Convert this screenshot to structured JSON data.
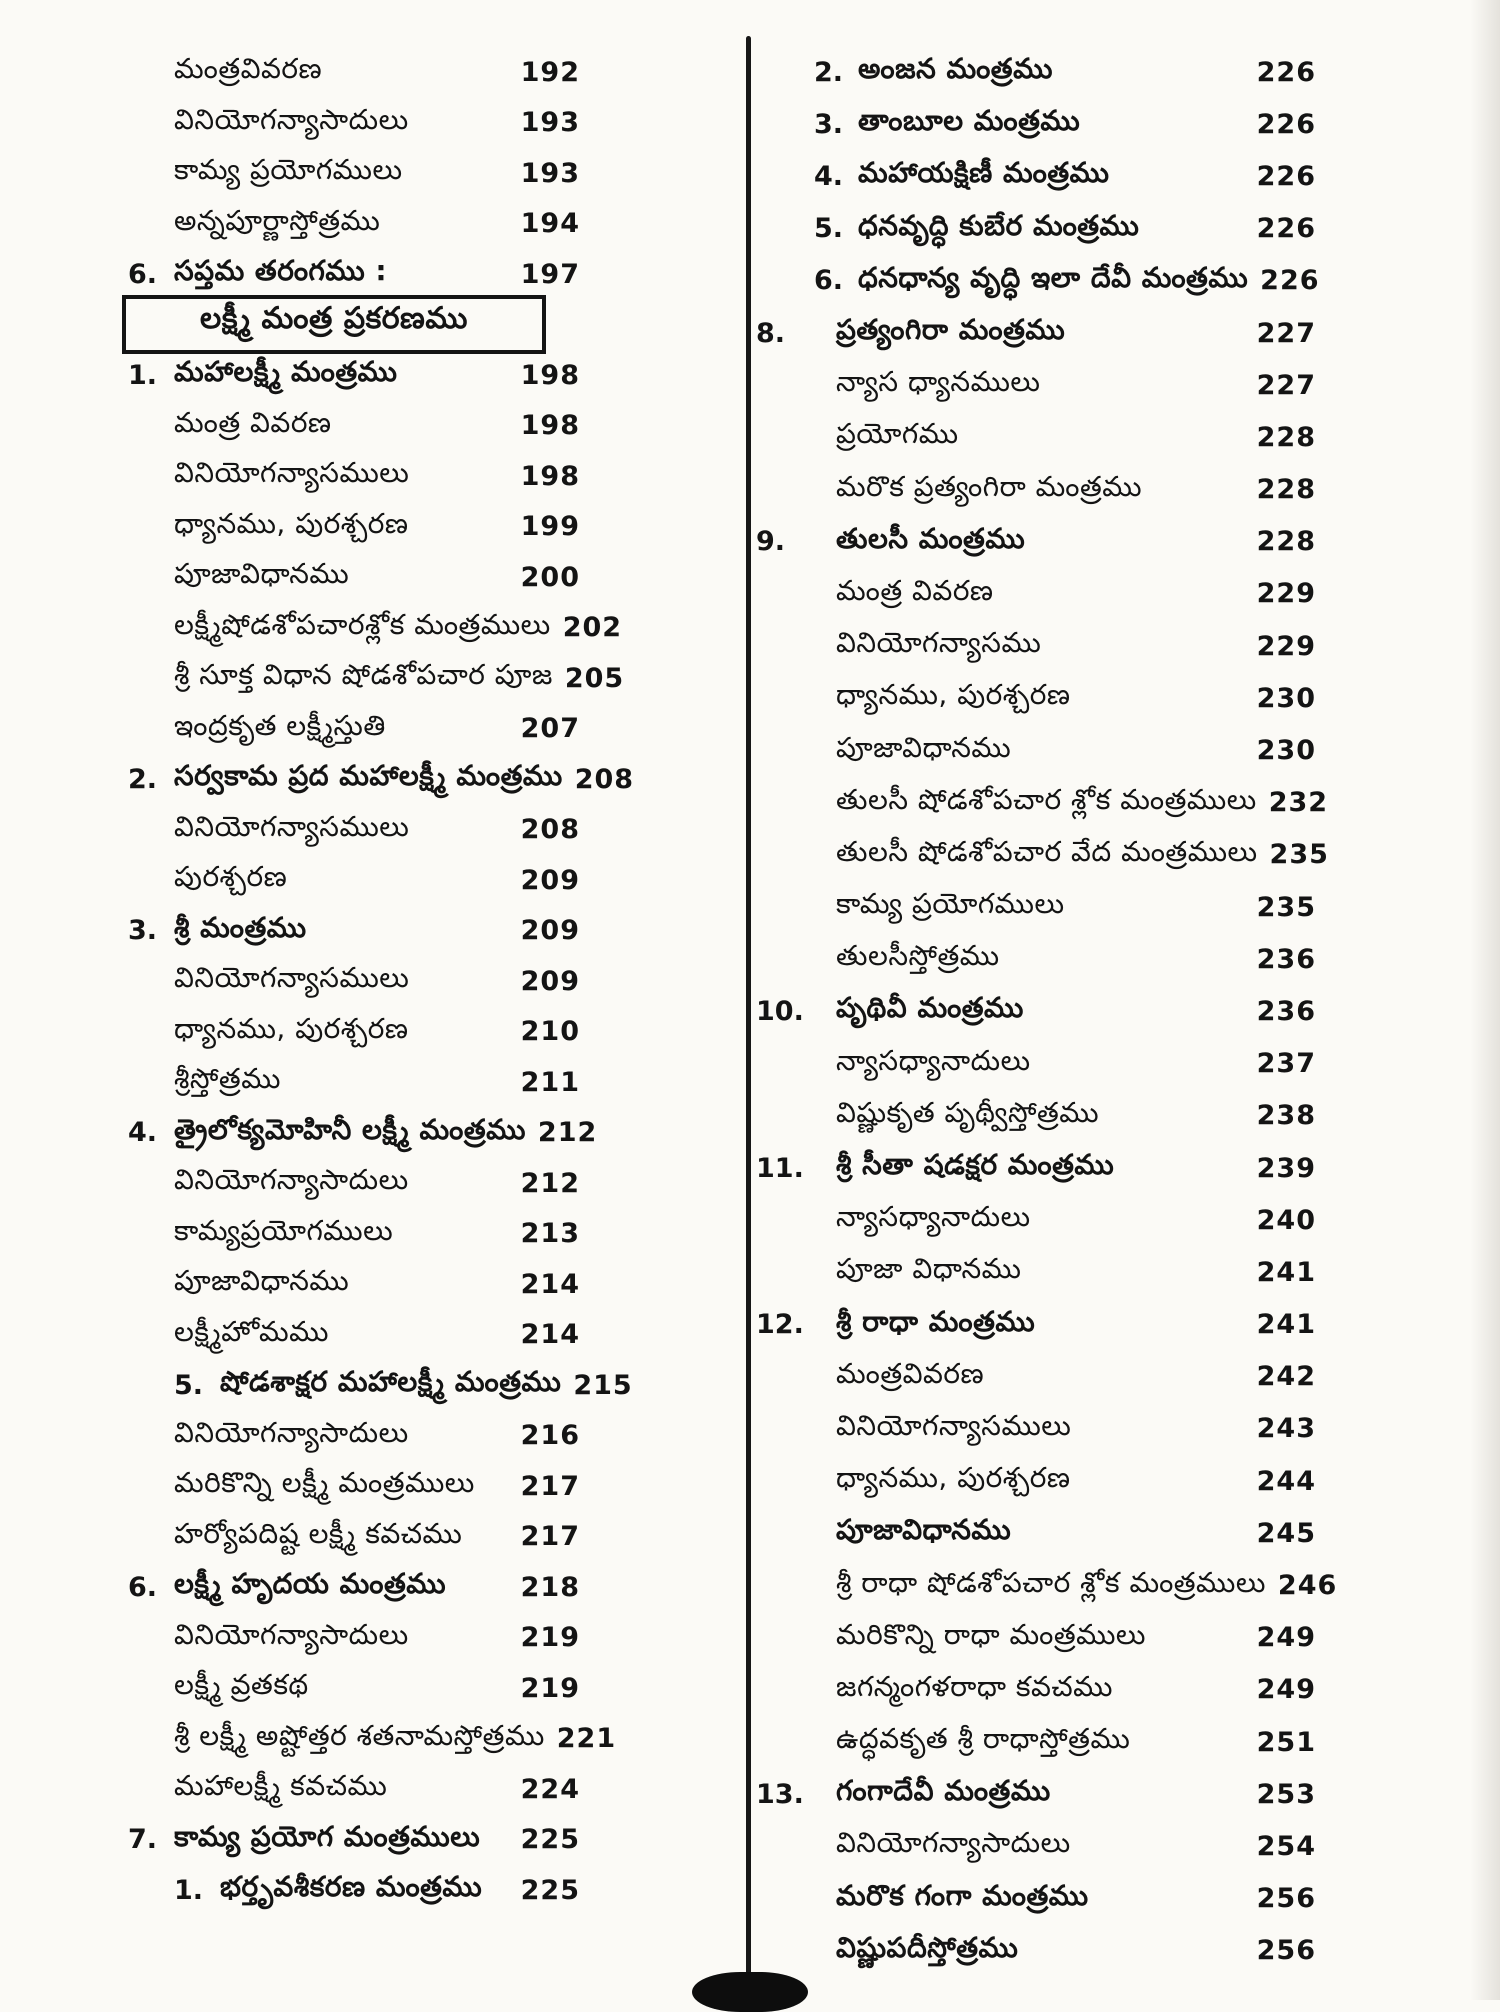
{
  "page": {
    "ink_color": "#141414",
    "paper_color": "#fbfaf6",
    "boxed_heading": "లక్ష్మీ మంత్ర ప్రకరణము"
  },
  "left_column": {
    "entries": [
      {
        "num": "",
        "label": "మంత్రవివరణ",
        "page": "192",
        "bold": false
      },
      {
        "num": "",
        "label": "వినియోగన్యాసాదులు",
        "page": "193",
        "bold": false
      },
      {
        "num": "",
        "label": "కామ్య ప్రయోగములు",
        "page": "193",
        "bold": false
      },
      {
        "num": "",
        "label": "అన్నపూర్ణాస్తోత్రము",
        "page": "194",
        "bold": false
      },
      {
        "num": "6.",
        "label": "సప్తమ తరంగము :",
        "page": "197",
        "bold": true
      },
      {
        "num": "",
        "label": "లక్ష్మీ మంత్ర ప్రకరణము",
        "page": "",
        "bold": true,
        "boxed": true
      },
      {
        "num": "1.",
        "label": "మహాలక్ష్మీ మంత్రము",
        "page": "198",
        "bold": true
      },
      {
        "num": "",
        "label": "మంత్ర వివరణ",
        "page": "198",
        "bold": false
      },
      {
        "num": "",
        "label": "వినియోగన్యాసములు",
        "page": "198",
        "bold": false
      },
      {
        "num": "",
        "label": "ధ్యానము, పురశ్చరణ",
        "page": "199",
        "bold": false
      },
      {
        "num": "",
        "label": "పూజావిధానము",
        "page": "200",
        "bold": false
      },
      {
        "num": "",
        "label": "లక్ష్మీషోడశోపచారశ్లోక మంత్రములు",
        "page": "202",
        "bold": false
      },
      {
        "num": "",
        "label": "శ్రీ సూక్త విధాన షోడశోపచార పూజ",
        "page": "205",
        "bold": false
      },
      {
        "num": "",
        "label": "ఇంద్రకృత లక్ష్మీస్తుతి",
        "page": "207",
        "bold": false
      },
      {
        "num": "2.",
        "label": "సర్వకామ ప్రద మహాలక్ష్మీ మంత్రము",
        "page": "208",
        "bold": true
      },
      {
        "num": "",
        "label": "వినియోగన్యాసములు",
        "page": "208",
        "bold": false
      },
      {
        "num": "",
        "label": "పురశ్చరణ",
        "page": "209",
        "bold": false
      },
      {
        "num": "3.",
        "label": "శ్రీ మంత్రము",
        "page": "209",
        "bold": true
      },
      {
        "num": "",
        "label": "వినియోగన్యాసములు",
        "page": "209",
        "bold": false
      },
      {
        "num": "",
        "label": "ధ్యానము, పురశ్చరణ",
        "page": "210",
        "bold": false
      },
      {
        "num": "",
        "label": "శ్రీస్తోత్రము",
        "page": "211",
        "bold": false
      },
      {
        "num": "4.",
        "label": "త్రైలోక్యమోహినీ లక్ష్మీ మంత్రము",
        "page": "212",
        "bold": true
      },
      {
        "num": "",
        "label": "వినియోగన్యాసాదులు",
        "page": "212",
        "bold": false
      },
      {
        "num": "",
        "label": "కామ్యప్రయోగములు",
        "page": "213",
        "bold": false
      },
      {
        "num": "",
        "label": "పూజావిధానము",
        "page": "214",
        "bold": false
      },
      {
        "num": "",
        "label": "లక్ష్మీహోమము",
        "page": "214",
        "bold": false
      },
      {
        "num": "5.",
        "label": "షోడశాక్షర మహాలక్ష్మీ మంత్రము",
        "page": "215",
        "bold": true,
        "sub": true
      },
      {
        "num": "",
        "label": "వినియోగన్యాసాదులు",
        "page": "216",
        "bold": false
      },
      {
        "num": "",
        "label": "మరికొన్ని లక్ష్మీ మంత్రములు",
        "page": "217",
        "bold": false
      },
      {
        "num": "",
        "label": "హర్యోపదిష్ట లక్ష్మీ కవచము",
        "page": "217",
        "bold": false
      },
      {
        "num": "6.",
        "label": "లక్ష్మీ హృదయ మంత్రము",
        "page": "218",
        "bold": true
      },
      {
        "num": "",
        "label": "వినియోగన్యాసాదులు",
        "page": "219",
        "bold": false
      },
      {
        "num": "",
        "label": "లక్ష్మీ వ్రతకథ",
        "page": "219",
        "bold": false
      },
      {
        "num": "",
        "label": "శ్రీ లక్ష్మీ అష్టోత్తర శతనామస్తోత్రము",
        "page": "221",
        "bold": false
      },
      {
        "num": "",
        "label": "మహాలక్ష్మీ కవచము",
        "page": "224",
        "bold": false
      },
      {
        "num": "7.",
        "label": "కామ్య ప్రయోగ మంత్రములు",
        "page": "225",
        "bold": true
      },
      {
        "num": "1.",
        "label": "భర్తృవశీకరణ మంత్రము",
        "page": "225",
        "bold": true,
        "sub": true
      }
    ]
  },
  "right_column": {
    "entries": [
      {
        "num": "2.",
        "label": "అంజన మంత్రము",
        "page": "226",
        "bold": true,
        "sub": true
      },
      {
        "num": "3.",
        "label": "తాంబూల మంత్రము",
        "page": "226",
        "bold": true,
        "sub": true
      },
      {
        "num": "4.",
        "label": "మహాయక్షిణీ మంత్రము",
        "page": "226",
        "bold": true,
        "sub": true
      },
      {
        "num": "5.",
        "label": "ధనవృద్ధి కుబేర మంత్రము",
        "page": "226",
        "bold": true,
        "sub": true
      },
      {
        "num": "6.",
        "label": "ధనధాన్య వృద్ధి ఇలా దేవీ మంత్రము",
        "page": "226",
        "bold": true,
        "sub": true
      },
      {
        "num": "8.",
        "label": "ప్రత్యంగిరా మంత్రము",
        "page": "227",
        "bold": true
      },
      {
        "num": "",
        "label": "న్యాస ధ్యానములు",
        "page": "227",
        "bold": false
      },
      {
        "num": "",
        "label": "ప్రయోగము",
        "page": "228",
        "bold": false
      },
      {
        "num": "",
        "label": "మరొక ప్రత్యంగిరా మంత్రము",
        "page": "228",
        "bold": false
      },
      {
        "num": "9.",
        "label": "తులసీ మంత్రము",
        "page": "228",
        "bold": true
      },
      {
        "num": "",
        "label": "మంత్ర వివరణ",
        "page": "229",
        "bold": false
      },
      {
        "num": "",
        "label": "వినియోగన్యాసము",
        "page": "229",
        "bold": false
      },
      {
        "num": "",
        "label": "ధ్యానము, పురశ్చరణ",
        "page": "230",
        "bold": false
      },
      {
        "num": "",
        "label": "పూజావిధానము",
        "page": "230",
        "bold": false
      },
      {
        "num": "",
        "label": "తులసీ షోడశోపచార శ్లోక మంత్రములు",
        "page": "232",
        "bold": false
      },
      {
        "num": "",
        "label": "తులసీ షోడశోపచార వేద మంత్రములు",
        "page": "235",
        "bold": false
      },
      {
        "num": "",
        "label": "కామ్య ప్రయోగములు",
        "page": "235",
        "bold": false
      },
      {
        "num": "",
        "label": "తులసీస్తోత్రము",
        "page": "236",
        "bold": false
      },
      {
        "num": "10.",
        "label": "పృథివీ మంత్రము",
        "page": "236",
        "bold": true
      },
      {
        "num": "",
        "label": "న్యాసధ్యానాదులు",
        "page": "237",
        "bold": false
      },
      {
        "num": "",
        "label": "విష్ణుకృత పృథ్వీస్తోత్రము",
        "page": "238",
        "bold": false
      },
      {
        "num": "11.",
        "label": "శ్రీ సీతా షడక్షర మంత్రము",
        "page": "239",
        "bold": true
      },
      {
        "num": "",
        "label": "న్యాసధ్యానాదులు",
        "page": "240",
        "bold": false
      },
      {
        "num": "",
        "label": "పూజా విధానము",
        "page": "241",
        "bold": false
      },
      {
        "num": "12.",
        "label": "శ్రీ రాధా మంత్రము",
        "page": "241",
        "bold": true
      },
      {
        "num": "",
        "label": "మంత్రవివరణ",
        "page": "242",
        "bold": false
      },
      {
        "num": "",
        "label": "వినియోగన్యాసములు",
        "page": "243",
        "bold": false
      },
      {
        "num": "",
        "label": "ధ్యానము, పురశ్చరణ",
        "page": "244",
        "bold": false
      },
      {
        "num": "",
        "label": "పూజావిధానము",
        "page": "245",
        "bold": true
      },
      {
        "num": "",
        "label": "శ్రీ రాధా షోడశోపచార శ్లోక మంత్రములు",
        "page": "246",
        "bold": false
      },
      {
        "num": "",
        "label": "మరికొన్ని రాధా మంత్రములు",
        "page": "249",
        "bold": false
      },
      {
        "num": "",
        "label": "జగన్మంగళరాధా కవచము",
        "page": "249",
        "bold": false
      },
      {
        "num": "",
        "label": "ఉద్ధవకృత శ్రీ రాధాస్తోత్రము",
        "page": "251",
        "bold": false
      },
      {
        "num": "13.",
        "label": "గంగాదేవీ మంత్రము",
        "page": "253",
        "bold": true
      },
      {
        "num": "",
        "label": "వినియోగన్యాసాదులు",
        "page": "254",
        "bold": false
      },
      {
        "num": "",
        "label": "మరొక గంగా మంత్రము",
        "page": "256",
        "bold": true
      },
      {
        "num": "",
        "label": "విష్ణుపదీస్తోత్రము",
        "page": "256",
        "bold": true
      }
    ]
  }
}
